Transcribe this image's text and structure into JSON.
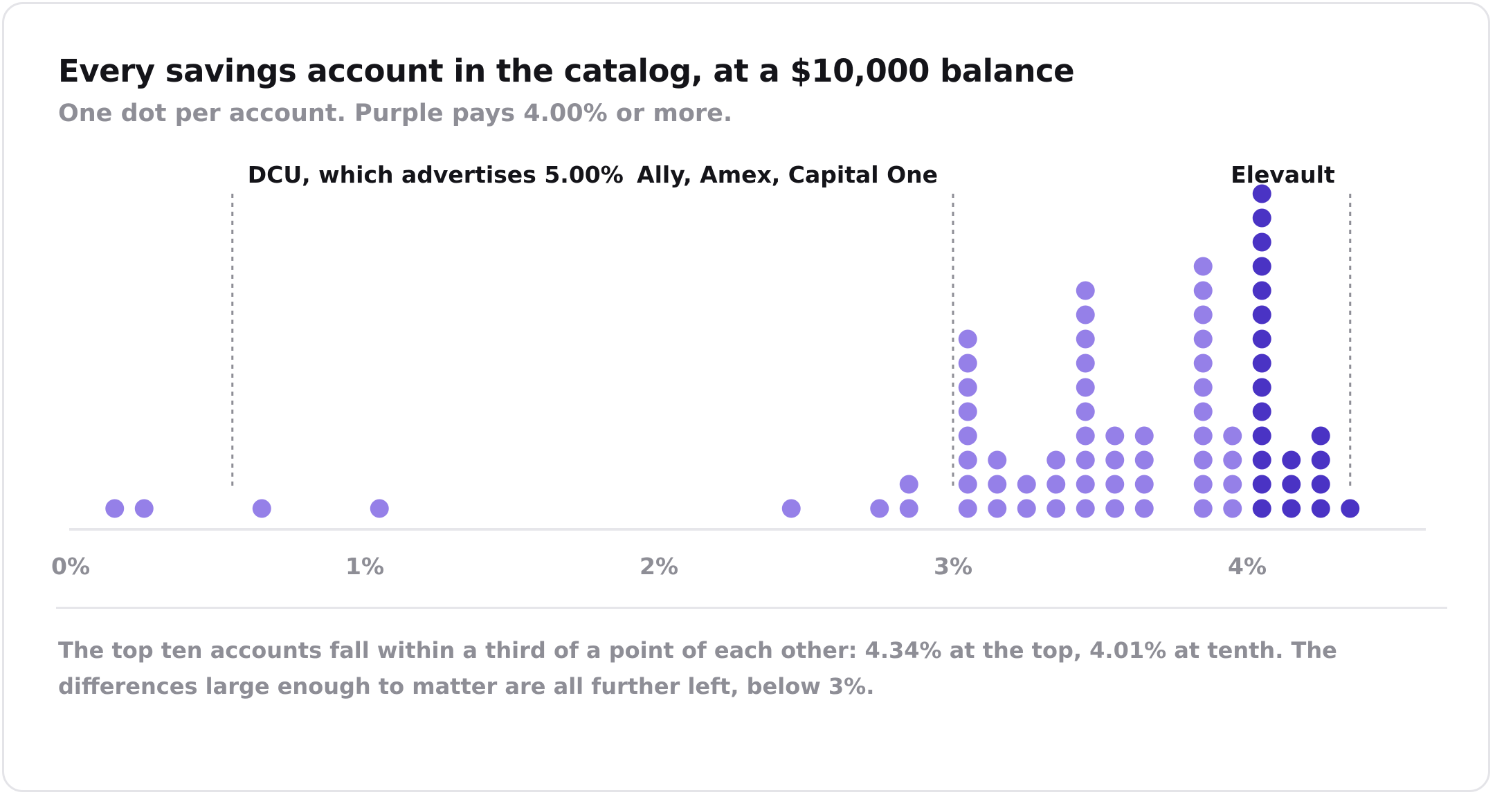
{
  "title": "Every savings account in the catalog, at a $10,000 balance",
  "subtitle": "One dot per account. Purple pays 4.00% or more.",
  "note": "The top ten accounts fall within a third of a point of each other: 4.34% at the top, 4.01% at tenth. The differences large enough to matter are all further left, below 3%.",
  "colors": {
    "light_dot": "#9580e8",
    "dark_dot": "#4a33c4",
    "axis": "#e6e6ea",
    "tick_label": "#8e8e96",
    "annotation_line": "#8e8e96",
    "annotation_text": "#141419"
  },
  "chart_data": {
    "type": "scatter",
    "x_unit": "%",
    "xlim": [
      0,
      4.6
    ],
    "ticks": [
      {
        "value": 0,
        "label": "0%"
      },
      {
        "value": 1,
        "label": "1%"
      },
      {
        "value": 2,
        "label": "2%"
      },
      {
        "value": 3,
        "label": "3%"
      },
      {
        "value": 4,
        "label": "4%"
      }
    ],
    "grid": false,
    "highlight_threshold": 4.0,
    "bins": [
      {
        "x": 0.15,
        "count": 1
      },
      {
        "x": 0.25,
        "count": 1
      },
      {
        "x": 0.65,
        "count": 1
      },
      {
        "x": 1.05,
        "count": 1
      },
      {
        "x": 2.45,
        "count": 1
      },
      {
        "x": 2.75,
        "count": 1
      },
      {
        "x": 2.85,
        "count": 2
      },
      {
        "x": 3.05,
        "count": 8
      },
      {
        "x": 3.15,
        "count": 3
      },
      {
        "x": 3.25,
        "count": 2
      },
      {
        "x": 3.35,
        "count": 3
      },
      {
        "x": 3.45,
        "count": 10
      },
      {
        "x": 3.55,
        "count": 4
      },
      {
        "x": 3.65,
        "count": 4
      },
      {
        "x": 3.85,
        "count": 11
      },
      {
        "x": 3.95,
        "count": 4
      },
      {
        "x": 4.05,
        "count": 14
      },
      {
        "x": 4.15,
        "count": 3
      },
      {
        "x": 4.25,
        "count": 4
      },
      {
        "x": 4.35,
        "count": 1
      }
    ],
    "annotations": [
      {
        "label": "DCU, which advertises 5.00%",
        "x": 0.55,
        "anchor": "start"
      },
      {
        "label": "Ally, Amex, Capital One",
        "x": 3.0,
        "anchor": "end"
      },
      {
        "label": "Elevault",
        "x": 4.35,
        "anchor": "end"
      }
    ]
  }
}
